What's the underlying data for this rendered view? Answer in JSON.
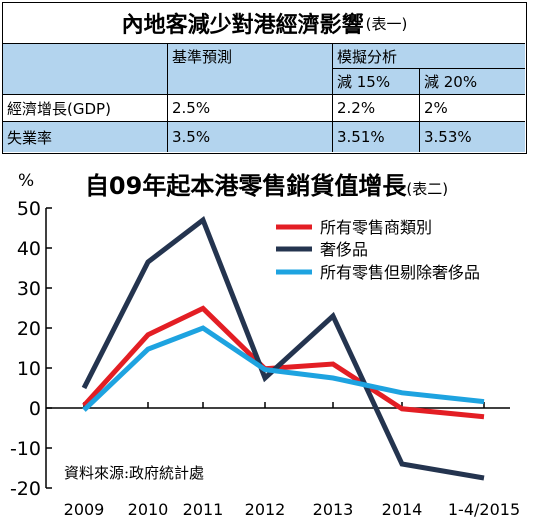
{
  "table": {
    "title": "內地客減少對港經濟影響",
    "title_note": "(表一)",
    "header": {
      "group1": "基準預測",
      "group2": "模擬分析",
      "sub1": "減 15%",
      "sub2": "減 20%"
    },
    "rows": [
      {
        "label": "經濟增長(GDP)",
        "values": [
          "2.5%",
          "2.2%",
          "2%"
        ]
      },
      {
        "label": "失業率",
        "values": [
          "3.5%",
          "3.51%",
          "3.53%"
        ]
      }
    ]
  },
  "chart_data": {
    "type": "line",
    "title": "自09年起本港零售銷貨值增長",
    "title_note": "(表二)",
    "ylabel": "%",
    "source_note": "資料來源:政府統計處",
    "categories": [
      "2009",
      "2010",
      "2011",
      "2012",
      "2013",
      "2014",
      "1-4/2015"
    ],
    "yticks": [
      "50",
      "40",
      "30",
      "20",
      "10",
      "0",
      "-10",
      "-20"
    ],
    "ylim": [
      -20,
      50
    ],
    "grid": false,
    "legend_position": "top-right",
    "series": [
      {
        "name": "所有零售商類別",
        "color": "#e31e24",
        "values": [
          0.6,
          18.3,
          24.9,
          9.8,
          11.0,
          -0.2,
          -2.2
        ]
      },
      {
        "name": "奢侈品",
        "color": "#24344f",
        "values": [
          5.0,
          36.5,
          47.0,
          7.5,
          23.0,
          -14.0,
          -17.5
        ]
      },
      {
        "name": "所有零售但剔除奢侈品",
        "color": "#1ea3e0",
        "values": [
          -0.5,
          14.7,
          20.0,
          9.6,
          7.5,
          3.8,
          1.6
        ]
      }
    ]
  }
}
